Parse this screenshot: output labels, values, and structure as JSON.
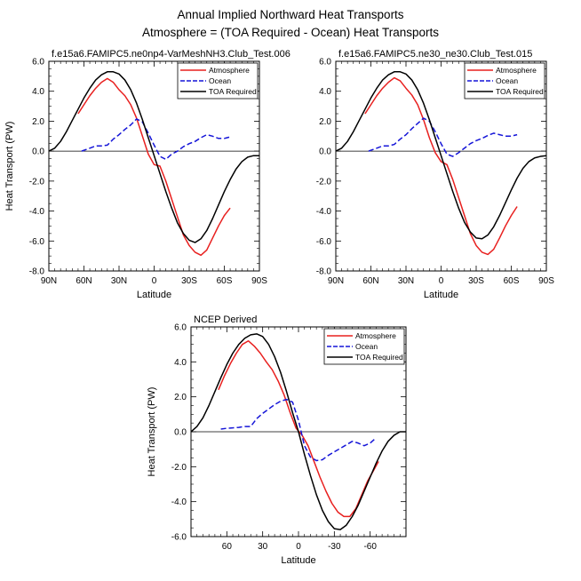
{
  "page": {
    "title_line1": "Annual Implied Northward Heat Transports",
    "title_line2": "Atmosphere = (TOA Required - Ocean) Heat Transports"
  },
  "chart_data": [
    {
      "type": "line",
      "title": "f.e15a6.FAMIPC5.ne0np4-VarMeshNH3.Club_Test.006",
      "xlabel": "Latitude",
      "ylabel": "Heat Transport (PW)",
      "xlim": [
        90,
        -90
      ],
      "ylim": [
        -8,
        6
      ],
      "xticks": [
        90,
        60,
        30,
        0,
        -30,
        -60,
        -90
      ],
      "xtick_labels": [
        "90N",
        "60N",
        "30N",
        "0",
        "30S",
        "60S",
        "90S"
      ],
      "yticks": [
        -8,
        -6,
        -4,
        -2,
        0,
        2,
        4,
        6
      ],
      "ytick_labels": [
        "-8.0",
        "-6.0",
        "-4.0",
        "-2.0",
        "0.0",
        "2.0",
        "4.0",
        "6.0"
      ],
      "legend_position": "top-right",
      "series": [
        {
          "name": "Atmosphere",
          "color": "#e8201f",
          "dash": "solid",
          "x": [
            65,
            60,
            55,
            50,
            45,
            40,
            35,
            30,
            25,
            20,
            15,
            10,
            5,
            0,
            -5,
            -10,
            -15,
            -20,
            -25,
            -30,
            -35,
            -40,
            -45,
            -50,
            -55,
            -60,
            -65
          ],
          "y": [
            2.5,
            3.1,
            3.7,
            4.2,
            4.6,
            4.85,
            4.6,
            4.1,
            3.7,
            3.1,
            2.2,
            1.0,
            -0.2,
            -0.9,
            -1.0,
            -2.0,
            -3.2,
            -4.4,
            -5.6,
            -6.3,
            -6.75,
            -6.95,
            -6.6,
            -5.8,
            -5.0,
            -4.3,
            -3.8
          ]
        },
        {
          "name": "Ocean",
          "color": "#1515d8",
          "dash": "dashed",
          "x": [
            62,
            55,
            50,
            45,
            40,
            35,
            30,
            25,
            20,
            15,
            10,
            5,
            0,
            -5,
            -10,
            -15,
            -20,
            -25,
            -30,
            -35,
            -40,
            -45,
            -50,
            -55,
            -60,
            -65
          ],
          "y": [
            0.0,
            0.2,
            0.35,
            0.35,
            0.4,
            0.8,
            1.1,
            1.45,
            1.75,
            2.15,
            1.95,
            1.2,
            0.4,
            -0.35,
            -0.55,
            -0.2,
            0.0,
            0.3,
            0.5,
            0.65,
            0.9,
            1.1,
            1.0,
            0.85,
            0.85,
            0.95
          ]
        },
        {
          "name": "TOA Required",
          "color": "#000000",
          "dash": "solid",
          "x": [
            90,
            85,
            80,
            75,
            70,
            65,
            60,
            55,
            50,
            45,
            40,
            35,
            30,
            25,
            20,
            15,
            10,
            5,
            0,
            -5,
            -10,
            -15,
            -20,
            -25,
            -30,
            -35,
            -40,
            -45,
            -50,
            -55,
            -60,
            -65,
            -70,
            -75,
            -80,
            -85,
            -90
          ],
          "y": [
            0.0,
            0.2,
            0.65,
            1.3,
            2.05,
            2.8,
            3.55,
            4.2,
            4.75,
            5.1,
            5.3,
            5.3,
            5.15,
            4.75,
            4.1,
            3.2,
            2.1,
            0.9,
            -0.3,
            -1.5,
            -2.7,
            -3.8,
            -4.8,
            -5.5,
            -5.95,
            -6.1,
            -5.85,
            -5.3,
            -4.5,
            -3.6,
            -2.7,
            -1.9,
            -1.2,
            -0.7,
            -0.4,
            -0.3,
            -0.3
          ]
        }
      ]
    },
    {
      "type": "line",
      "title": "f.e15a6.FAMIPC5.ne30_ne30.Club_Test.015",
      "xlabel": "Latitude",
      "ylabel": "",
      "xlim": [
        90,
        -90
      ],
      "ylim": [
        -8,
        6
      ],
      "xticks": [
        90,
        60,
        30,
        0,
        -30,
        -60,
        -90
      ],
      "xtick_labels": [
        "90N",
        "60N",
        "30N",
        "0",
        "30S",
        "60S",
        "90S"
      ],
      "yticks": [
        -8,
        -6,
        -4,
        -2,
        0,
        2,
        4,
        6
      ],
      "ytick_labels": [
        "-8.0",
        "-6.0",
        "-4.0",
        "-2.0",
        "0.0",
        "2.0",
        "4.0",
        "6.0"
      ],
      "legend_position": "top-right",
      "series": [
        {
          "name": "Atmosphere",
          "color": "#e8201f",
          "dash": "solid",
          "x": [
            65,
            60,
            55,
            50,
            45,
            40,
            35,
            30,
            25,
            20,
            15,
            10,
            5,
            0,
            -5,
            -10,
            -15,
            -20,
            -25,
            -30,
            -35,
            -40,
            -45,
            -50,
            -55,
            -60,
            -65
          ],
          "y": [
            2.5,
            3.1,
            3.7,
            4.2,
            4.6,
            4.9,
            4.7,
            4.2,
            3.75,
            3.1,
            2.1,
            0.9,
            -0.1,
            -0.7,
            -0.9,
            -1.9,
            -3.1,
            -4.3,
            -5.5,
            -6.3,
            -6.75,
            -6.9,
            -6.55,
            -5.8,
            -5.0,
            -4.3,
            -3.7
          ]
        },
        {
          "name": "Ocean",
          "color": "#1515d8",
          "dash": "dashed",
          "x": [
            62,
            55,
            50,
            45,
            40,
            35,
            30,
            25,
            20,
            15,
            10,
            5,
            0,
            -5,
            -10,
            -15,
            -20,
            -25,
            -30,
            -35,
            -40,
            -45,
            -50,
            -55,
            -60,
            -65
          ],
          "y": [
            0.0,
            0.2,
            0.35,
            0.35,
            0.45,
            0.8,
            1.1,
            1.5,
            1.85,
            2.2,
            2.0,
            1.3,
            0.5,
            -0.2,
            -0.35,
            -0.1,
            0.2,
            0.5,
            0.7,
            0.85,
            1.05,
            1.2,
            1.1,
            1.0,
            1.0,
            1.1
          ]
        },
        {
          "name": "TOA Required",
          "color": "#000000",
          "dash": "solid",
          "x": [
            90,
            85,
            80,
            75,
            70,
            65,
            60,
            55,
            50,
            45,
            40,
            35,
            30,
            25,
            20,
            15,
            10,
            5,
            0,
            -5,
            -10,
            -15,
            -20,
            -25,
            -30,
            -35,
            -40,
            -45,
            -50,
            -55,
            -60,
            -65,
            -70,
            -75,
            -80,
            -85,
            -90
          ],
          "y": [
            0.0,
            0.2,
            0.65,
            1.3,
            2.05,
            2.8,
            3.55,
            4.2,
            4.75,
            5.1,
            5.3,
            5.3,
            5.15,
            4.75,
            4.1,
            3.2,
            2.1,
            0.9,
            -0.3,
            -1.5,
            -2.7,
            -3.8,
            -4.75,
            -5.4,
            -5.8,
            -5.85,
            -5.6,
            -5.05,
            -4.3,
            -3.45,
            -2.6,
            -1.8,
            -1.15,
            -0.7,
            -0.45,
            -0.35,
            -0.3
          ]
        }
      ]
    },
    {
      "type": "line",
      "title": "NCEP Derived",
      "xlabel": "Latitude",
      "ylabel": "Heat Transport (PW)",
      "xlim": [
        90,
        -90
      ],
      "ylim": [
        -6,
        6
      ],
      "xticks": [
        60,
        30,
        0,
        -30,
        -60
      ],
      "xtick_labels": [
        "60",
        "30",
        "0",
        "-30",
        "-60"
      ],
      "yticks": [
        -6,
        -4,
        -2,
        0,
        2,
        4,
        6
      ],
      "ytick_labels": [
        "-6.0",
        "-4.0",
        "-2.0",
        "0.0",
        "2.0",
        "4.0",
        "6.0"
      ],
      "legend_position": "top-right",
      "series": [
        {
          "name": "Atmosphere",
          "color": "#e8201f",
          "dash": "solid",
          "x": [
            67,
            62,
            57,
            52,
            47,
            42,
            37,
            32,
            27,
            22,
            17,
            12,
            7,
            2,
            -3,
            -8,
            -13,
            -18,
            -23,
            -28,
            -33,
            -38,
            -43,
            -48,
            -53,
            -58,
            -63,
            -67
          ],
          "y": [
            2.4,
            3.2,
            3.9,
            4.5,
            5.0,
            5.2,
            4.9,
            4.5,
            4.0,
            3.55,
            2.9,
            2.1,
            1.1,
            0.2,
            -0.2,
            -0.8,
            -1.7,
            -2.6,
            -3.4,
            -4.1,
            -4.6,
            -4.85,
            -4.85,
            -4.4,
            -3.6,
            -2.8,
            -2.2,
            -1.7
          ]
        },
        {
          "name": "Ocean",
          "color": "#1515d8",
          "dash": "dashed",
          "x": [
            65,
            60,
            55,
            50,
            45,
            40,
            35,
            30,
            25,
            20,
            15,
            10,
            5,
            0,
            -5,
            -10,
            -15,
            -20,
            -25,
            -30,
            -35,
            -40,
            -45,
            -50,
            -55,
            -60,
            -65
          ],
          "y": [
            0.15,
            0.2,
            0.22,
            0.25,
            0.3,
            0.3,
            0.75,
            1.05,
            1.3,
            1.55,
            1.75,
            1.85,
            1.7,
            0.65,
            -0.8,
            -1.45,
            -1.65,
            -1.6,
            -1.35,
            -1.15,
            -0.95,
            -0.75,
            -0.55,
            -0.65,
            -0.8,
            -0.65,
            -0.35
          ]
        },
        {
          "name": "TOA Required",
          "color": "#000000",
          "dash": "solid",
          "x": [
            90,
            85,
            80,
            75,
            70,
            65,
            60,
            55,
            50,
            45,
            40,
            35,
            30,
            25,
            20,
            15,
            10,
            5,
            0,
            -5,
            -10,
            -15,
            -20,
            -25,
            -30,
            -35,
            -40,
            -45,
            -50,
            -55,
            -60,
            -65,
            -70,
            -75,
            -80,
            -85,
            -90
          ],
          "y": [
            0.0,
            0.3,
            0.8,
            1.5,
            2.3,
            3.1,
            3.85,
            4.5,
            5.0,
            5.35,
            5.55,
            5.6,
            5.45,
            5.0,
            4.3,
            3.4,
            2.3,
            1.1,
            0.0,
            -1.3,
            -2.5,
            -3.6,
            -4.5,
            -5.15,
            -5.55,
            -5.6,
            -5.35,
            -4.85,
            -4.2,
            -3.4,
            -2.6,
            -1.8,
            -1.1,
            -0.55,
            -0.2,
            0.0,
            0.0
          ]
        }
      ]
    }
  ]
}
